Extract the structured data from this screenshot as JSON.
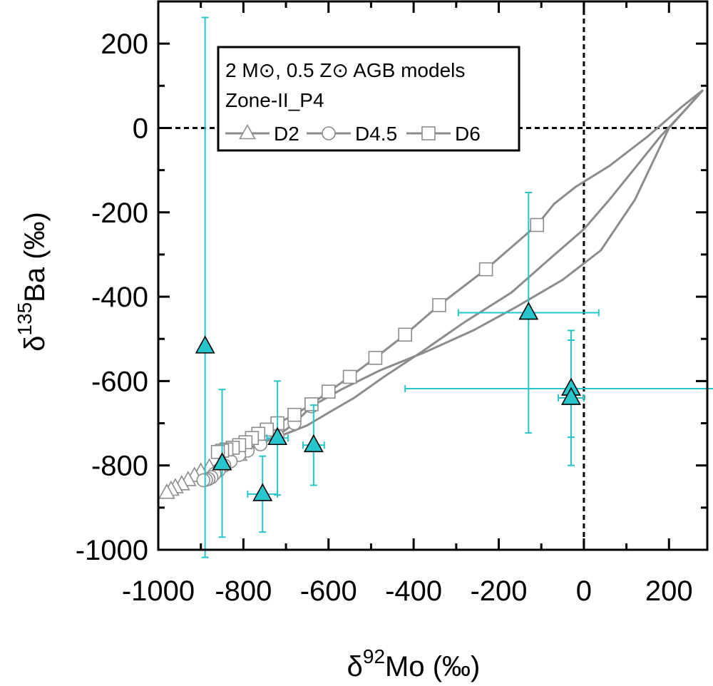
{
  "chart_data": {
    "type": "scatter",
    "xlabel": {
      "prefix": "δ",
      "sup": "92",
      "main": "Mo (‰)"
    },
    "ylabel": {
      "prefix": "δ",
      "sup": "135",
      "main": "Ba (‰)"
    },
    "xlim": [
      -1000,
      290
    ],
    "ylim": [
      -1000,
      300
    ],
    "xticks": [
      -1000,
      -800,
      -600,
      -400,
      -200,
      0,
      200
    ],
    "yticks": [
      -1000,
      -800,
      -600,
      -400,
      -200,
      0,
      200
    ],
    "xtick_labels": [
      "-1000",
      "-800",
      "-600",
      "-400",
      "-200",
      "0",
      "200"
    ],
    "ytick_labels": [
      "-1000",
      "-800",
      "-600",
      "-400",
      "-200",
      "0",
      "200"
    ],
    "reference_lines": {
      "x": 0,
      "y": 0
    },
    "legend": {
      "position": "top-left",
      "title_line1": "2 M⊙, 0.5 Z⊙ AGB models",
      "title_line2": "Zone-II_P4",
      "entries": [
        {
          "label": "D2",
          "marker": "triangle"
        },
        {
          "label": "D4.5",
          "marker": "circle"
        },
        {
          "label": "D6",
          "marker": "square"
        }
      ]
    },
    "colors": {
      "model": "#8c8c8c",
      "data_fill": "#26c6cc",
      "errorbar": "#26c6cc",
      "axis": "#000000"
    },
    "series": [
      {
        "name": "D2",
        "marker": "triangle",
        "x": [
          280,
          240,
          180,
          120,
          60,
          0,
          -80,
          -170,
          -280,
          -380,
          -470,
          -540,
          -600,
          -650,
          -700,
          -760,
          -810,
          -850,
          -880,
          -900,
          -915,
          -930,
          -945,
          -960,
          -970,
          -980
        ],
        "y": [
          90,
          45,
          -20,
          -95,
          -170,
          -240,
          -310,
          -390,
          -460,
          -530,
          -590,
          -640,
          -675,
          -705,
          -725,
          -745,
          -775,
          -795,
          -805,
          -815,
          -825,
          -835,
          -845,
          -852,
          -858,
          -865
        ],
        "marker_points": 10
      },
      {
        "name": "D4.5",
        "marker": "circle",
        "x": [
          280,
          200,
          120,
          40,
          -50,
          -160,
          -260,
          -370,
          -480,
          -570,
          -640,
          -680,
          -720,
          -760,
          -790,
          -810,
          -830,
          -845,
          -858,
          -868,
          -875,
          -882,
          -888,
          -894
        ],
        "y": [
          90,
          0,
          -170,
          -290,
          -360,
          -425,
          -480,
          -530,
          -575,
          -620,
          -660,
          -700,
          -730,
          -750,
          -765,
          -775,
          -790,
          -800,
          -812,
          -820,
          -828,
          -832,
          -834,
          -835
        ],
        "marker_points": 14
      },
      {
        "name": "D6",
        "marker": "square",
        "x": [
          280,
          230,
          150,
          60,
          -20,
          -70,
          -110,
          -230,
          -340,
          -420,
          -490,
          -550,
          -600,
          -640,
          -680,
          -720,
          -745,
          -765,
          -780,
          -795,
          -810,
          -825,
          -840,
          -850,
          -860
        ],
        "y": [
          90,
          50,
          -20,
          -90,
          -140,
          -180,
          -230,
          -335,
          -420,
          -490,
          -545,
          -590,
          -625,
          -655,
          -680,
          -700,
          -715,
          -725,
          -735,
          -745,
          -752,
          -758,
          -762,
          -765,
          -768
        ],
        "marker_points": 19
      }
    ],
    "measurements": [
      {
        "x": -890,
        "y": -518,
        "xerr": 0,
        "yerr": [
          780,
          500
        ]
      },
      {
        "x": -850,
        "y": -795,
        "xerr": 0,
        "yerr": 175
      },
      {
        "x": -755,
        "y": -868,
        "xerr": 35,
        "yerr": 90
      },
      {
        "x": -720,
        "y": -735,
        "xerr": 25,
        "yerr": 135
      },
      {
        "x": -635,
        "y": -752,
        "xerr": 25,
        "yerr": 95
      },
      {
        "x": -130,
        "y": -438,
        "xerr": 165,
        "yerr": 285
      },
      {
        "x": -30,
        "y": -618,
        "xerr": 390,
        "yerr": 115
      },
      {
        "x": -30,
        "y": -640,
        "xerr": 30,
        "yerr": 160
      }
    ]
  }
}
